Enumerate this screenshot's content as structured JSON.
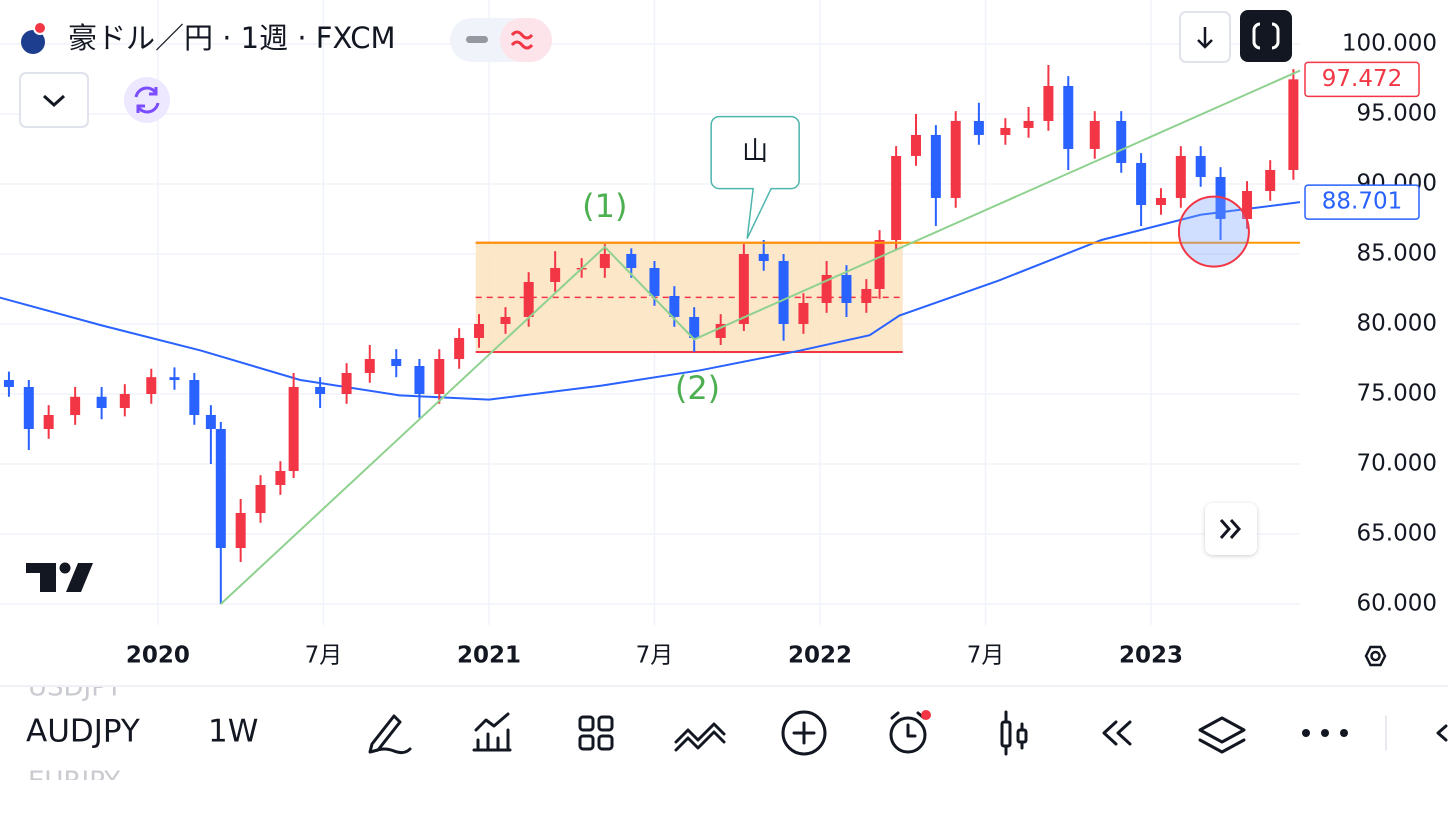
{
  "ui": {
    "symbol_title": "豪ドル／円 · 1週 · FXCM",
    "ticker": "AUDJPY",
    "interval": "1W",
    "prev_ticker": "USDJPY",
    "next_ticker": "EURJPY"
  },
  "chart_data": {
    "type": "candlestick",
    "x": [
      2019.55,
      2019.61,
      2019.67,
      2019.75,
      2019.83,
      2019.9,
      2019.98,
      2020.05,
      2020.11,
      2020.16,
      2020.19,
      2020.25,
      2020.31,
      2020.37,
      2020.41,
      2020.49,
      2020.57,
      2020.64,
      2020.72,
      2020.79,
      2020.85,
      2020.91,
      2020.97,
      2021.05,
      2021.12,
      2021.2,
      2021.28,
      2021.35,
      2021.43,
      2021.5,
      2021.56,
      2021.62,
      2021.7,
      2021.77,
      2021.83,
      2021.89,
      2021.95,
      2022.02,
      2022.08,
      2022.14,
      2022.18,
      2022.23,
      2022.29,
      2022.35,
      2022.41,
      2022.48,
      2022.56,
      2022.63,
      2022.69,
      2022.75,
      2022.83,
      2022.91,
      2022.97,
      2023.03,
      2023.09,
      2023.15,
      2023.21,
      2023.29,
      2023.36,
      2023.43
    ],
    "open": [
      76.0,
      75.5,
      72.5,
      73.5,
      74.8,
      74.0,
      75.0,
      76.2,
      76.0,
      73.5,
      72.5,
      64.0,
      66.5,
      68.5,
      69.5,
      75.5,
      75.0,
      76.5,
      77.5,
      77.0,
      75.0,
      77.5,
      79.0,
      80.0,
      80.5,
      83.0,
      84.0,
      84.0,
      85.0,
      84.0,
      82.0,
      80.5,
      79.0,
      80.0,
      85.0,
      84.5,
      80.0,
      81.5,
      83.5,
      81.5,
      82.5,
      86.0,
      92.0,
      93.5,
      89.0,
      94.5,
      93.5,
      94.0,
      94.5,
      97.0,
      92.5,
      94.5,
      91.5,
      88.5,
      89.0,
      92.0,
      90.5,
      87.5,
      89.5,
      91.0
    ],
    "high": [
      76.6,
      76.0,
      74.2,
      75.5,
      75.5,
      75.7,
      76.8,
      76.9,
      76.5,
      74.2,
      73.0,
      67.5,
      69.2,
      70.2,
      76.5,
      76.2,
      77.2,
      78.5,
      78.2,
      77.5,
      78.2,
      79.7,
      80.7,
      81.2,
      83.7,
      85.2,
      84.7,
      85.7,
      85.4,
      84.5,
      82.7,
      81.2,
      80.7,
      85.7,
      86.0,
      85.0,
      82.2,
      84.5,
      84.2,
      83.2,
      86.7,
      92.7,
      95.0,
      94.2,
      95.2,
      95.8,
      94.7,
      95.5,
      98.5,
      97.7,
      95.2,
      95.2,
      92.2,
      89.7,
      92.7,
      92.7,
      91.2,
      90.2,
      91.7,
      98.2
    ],
    "low": [
      74.8,
      71.0,
      71.8,
      72.8,
      73.2,
      73.4,
      74.3,
      75.3,
      72.8,
      70.0,
      60.0,
      63.0,
      65.8,
      67.8,
      69.0,
      74.0,
      74.3,
      75.8,
      76.2,
      73.3,
      74.3,
      76.8,
      78.3,
      79.3,
      79.8,
      82.3,
      83.3,
      83.3,
      83.3,
      81.3,
      79.8,
      78.0,
      78.5,
      79.5,
      83.8,
      78.8,
      79.3,
      80.8,
      80.5,
      80.8,
      81.8,
      85.3,
      91.3,
      87.0,
      88.3,
      92.8,
      92.8,
      93.3,
      93.8,
      91.0,
      91.8,
      90.8,
      87.0,
      87.8,
      88.3,
      89.8,
      86.0,
      86.8,
      88.8,
      90.3
    ],
    "close": [
      75.5,
      72.5,
      73.5,
      74.8,
      74.0,
      75.0,
      76.2,
      76.0,
      73.5,
      72.5,
      64.0,
      66.5,
      68.5,
      69.5,
      75.5,
      75.0,
      76.5,
      77.5,
      77.0,
      75.0,
      77.5,
      79.0,
      80.0,
      80.5,
      83.0,
      84.0,
      84.0,
      85.0,
      84.0,
      82.0,
      80.5,
      79.0,
      80.0,
      85.0,
      84.5,
      80.0,
      81.5,
      83.5,
      81.5,
      82.5,
      86.0,
      92.0,
      93.5,
      89.0,
      94.5,
      93.5,
      94.0,
      94.5,
      97.0,
      92.5,
      94.5,
      91.5,
      88.5,
      89.0,
      92.0,
      90.5,
      87.5,
      89.5,
      91.0,
      97.472
    ],
    "up_color": "#f23645",
    "down_color": "#2962ff",
    "ma": {
      "color": "#2962ff",
      "x": [
        2019.52,
        2019.83,
        2020.13,
        2020.43,
        2020.73,
        2021.0,
        2021.34,
        2021.64,
        2021.94,
        2022.15,
        2022.24,
        2022.54,
        2022.85,
        2023.15,
        2023.45
      ],
      "values": [
        81.9,
        79.9,
        78.1,
        76.0,
        74.9,
        74.6,
        75.6,
        76.7,
        78.1,
        79.2,
        80.6,
        83.1,
        86.0,
        87.8,
        88.701
      ]
    },
    "wave": {
      "color": "#8fd18f",
      "x": [
        2020.19,
        2021.35,
        2021.62,
        2023.45
      ],
      "y": [
        60.0,
        85.5,
        78.9,
        98.1
      ]
    },
    "zone": {
      "x": [
        2020.96,
        2022.25
      ],
      "y": [
        78.0,
        85.8
      ],
      "mid": 81.9,
      "fill": "#fde3c0",
      "edge_color": "#f23645"
    },
    "resistance": {
      "value": 85.8,
      "x": 2020.96,
      "color": "#ff9800"
    },
    "highlight": {
      "x": 2023.19,
      "y": 86.6,
      "color": "#f23645"
    },
    "labels": [
      {
        "text": "(1)",
        "x": 2021.35,
        "y": 88.3,
        "color": "#4caf50"
      },
      {
        "text": "(2)",
        "x": 2021.63,
        "y": 75.3,
        "color": "#4caf50"
      }
    ],
    "callout": {
      "text": "山",
      "x": 2021.78,
      "y": 86.1
    },
    "xlim": [
      2019.523,
      2023.45
    ],
    "ylim": [
      58.5,
      103.14
    ],
    "xticks": [
      2020,
      {
        "value": 2020.5,
        "label": "7月"
      },
      2021,
      {
        "value": 2021.5,
        "label": "7月"
      },
      2022,
      {
        "value": 2022.5,
        "label": "7月"
      },
      2023
    ],
    "yticks": [
      {
        "value": 60,
        "label": "60.000"
      },
      {
        "value": 65,
        "label": "65.000"
      },
      {
        "value": 70,
        "label": "70.000"
      },
      {
        "value": 75,
        "label": "75.000"
      },
      {
        "value": 80,
        "label": "80.000"
      },
      {
        "value": 85,
        "label": "85.000"
      },
      {
        "value": 90,
        "label": "90.000"
      },
      {
        "value": 95,
        "label": "95.000"
      },
      {
        "value": 100,
        "label": "100.000"
      }
    ],
    "grid": true
  }
}
